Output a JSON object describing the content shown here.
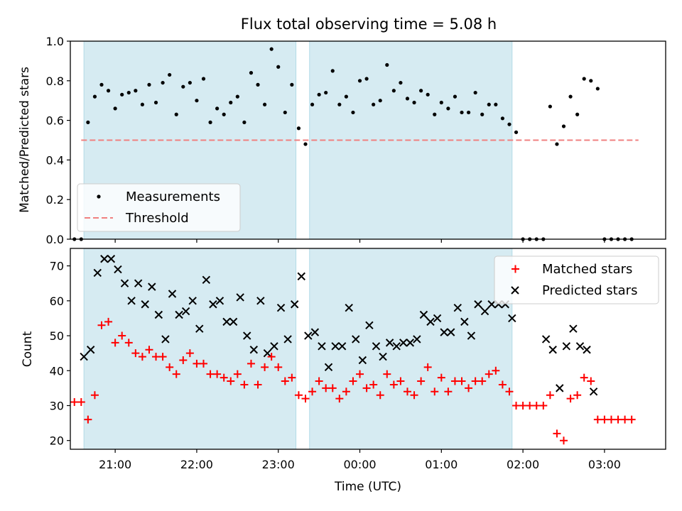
{
  "chart_data": [
    {
      "type": "scatter",
      "title": "Flux total observing time = 5.08 h",
      "ylabel": "Matched/Predicted stars",
      "xlabel": "",
      "xlim": [
        20.45,
        3.75
      ],
      "ylim": [
        0.0,
        1.0
      ],
      "yticks": [
        "0.0",
        "0.2",
        "0.4",
        "0.6",
        "0.8",
        "1.0"
      ],
      "shaded_intervals": [
        [
          "20:37",
          "23:13"
        ],
        [
          "23:23",
          "01:52"
        ]
      ],
      "legend_position": "lower-left",
      "legend": [
        "Measurements",
        "Threshold"
      ],
      "series": [
        {
          "name": "Measurements",
          "x": [
            "20:30",
            "20:35",
            "20:40",
            "20:45",
            "20:50",
            "20:55",
            "21:00",
            "21:05",
            "21:10",
            "21:15",
            "21:20",
            "21:25",
            "21:30",
            "21:35",
            "21:40",
            "21:45",
            "21:50",
            "21:55",
            "22:00",
            "22:05",
            "22:10",
            "22:15",
            "22:20",
            "22:25",
            "22:30",
            "22:35",
            "22:40",
            "22:45",
            "22:50",
            "22:55",
            "23:00",
            "23:05",
            "23:10",
            "23:15",
            "23:20",
            "23:25",
            "23:30",
            "23:35",
            "23:40",
            "23:45",
            "23:50",
            "23:55",
            "00:00",
            "00:05",
            "00:10",
            "00:15",
            "00:20",
            "00:25",
            "00:30",
            "00:35",
            "00:40",
            "00:45",
            "00:50",
            "00:55",
            "01:00",
            "01:05",
            "01:10",
            "01:15",
            "01:20",
            "01:25",
            "01:30",
            "01:35",
            "01:40",
            "01:45",
            "01:50",
            "01:55",
            "02:00",
            "02:05",
            "02:10",
            "02:15",
            "02:20",
            "02:25",
            "02:30",
            "02:35",
            "02:40",
            "02:45",
            "02:50",
            "02:55",
            "03:00",
            "03:05",
            "03:10",
            "03:15",
            "03:20"
          ],
          "y": [
            0.0,
            0.0,
            0.59,
            0.72,
            0.78,
            0.75,
            0.66,
            0.73,
            0.74,
            0.75,
            0.68,
            0.78,
            0.69,
            0.79,
            0.83,
            0.63,
            0.77,
            0.79,
            0.7,
            0.81,
            0.59,
            0.66,
            0.63,
            0.69,
            0.72,
            0.59,
            0.84,
            0.78,
            0.68,
            0.96,
            0.87,
            0.64,
            0.78,
            0.56,
            0.48,
            0.68,
            0.73,
            0.74,
            0.85,
            0.68,
            0.72,
            0.64,
            0.8,
            0.81,
            0.68,
            0.7,
            0.88,
            0.75,
            0.79,
            0.71,
            0.69,
            0.75,
            0.73,
            0.63,
            0.69,
            0.66,
            0.72,
            0.64,
            0.64,
            0.74,
            0.63,
            0.68,
            0.68,
            0.61,
            0.58,
            0.54,
            0.0,
            0.0,
            0.0,
            0.0,
            0.67,
            0.48,
            0.57,
            0.72,
            0.63,
            0.81,
            0.8,
            0.76,
            0.0,
            0.0,
            0.0,
            0.0,
            0.0
          ]
        },
        {
          "name": "Threshold",
          "x": [
            "20:35",
            "03:25"
          ],
          "y": [
            0.5,
            0.5
          ]
        }
      ]
    },
    {
      "type": "scatter",
      "title": "",
      "ylabel": "Count",
      "xlabel": "Time (UTC)",
      "xlim": [
        20.45,
        3.75
      ],
      "ylim": [
        17.5,
        75
      ],
      "yticks": [
        "20",
        "30",
        "40",
        "50",
        "60",
        "70"
      ],
      "xticks": [
        "21:00",
        "22:00",
        "23:00",
        "00:00",
        "01:00",
        "02:00",
        "03:00"
      ],
      "shaded_intervals": [
        [
          "20:37",
          "23:13"
        ],
        [
          "23:23",
          "01:52"
        ]
      ],
      "legend_position": "upper-right",
      "legend": [
        "Matched stars",
        "Predicted stars"
      ],
      "series": [
        {
          "name": "Matched stars",
          "x": [
            "20:30",
            "20:35",
            "20:40",
            "20:45",
            "20:50",
            "20:55",
            "21:00",
            "21:05",
            "21:10",
            "21:15",
            "21:20",
            "21:25",
            "21:30",
            "21:35",
            "21:40",
            "21:45",
            "21:50",
            "21:55",
            "22:00",
            "22:05",
            "22:10",
            "22:15",
            "22:20",
            "22:25",
            "22:30",
            "22:35",
            "22:40",
            "22:45",
            "22:50",
            "22:55",
            "23:00",
            "23:05",
            "23:10",
            "23:15",
            "23:20",
            "23:25",
            "23:30",
            "23:35",
            "23:40",
            "23:45",
            "23:50",
            "23:55",
            "00:00",
            "00:05",
            "00:10",
            "00:15",
            "00:20",
            "00:25",
            "00:30",
            "00:35",
            "00:40",
            "00:45",
            "00:50",
            "00:55",
            "01:00",
            "01:05",
            "01:10",
            "01:15",
            "01:20",
            "01:25",
            "01:30",
            "01:35",
            "01:40",
            "01:45",
            "01:50",
            "01:55",
            "02:00",
            "02:05",
            "02:10",
            "02:15",
            "02:20",
            "02:25",
            "02:30",
            "02:35",
            "02:40",
            "02:45",
            "02:50",
            "02:55",
            "03:00",
            "03:05",
            "03:10",
            "03:15",
            "03:20"
          ],
          "y": [
            31,
            31,
            26,
            33,
            53,
            54,
            48,
            50,
            48,
            45,
            44,
            46,
            44,
            44,
            41,
            39,
            43,
            45,
            42,
            42,
            39,
            39,
            38,
            37,
            39,
            36,
            42,
            36,
            41,
            44,
            41,
            37,
            38,
            33,
            32,
            34,
            37,
            35,
            35,
            32,
            34,
            37,
            39,
            35,
            36,
            33,
            39,
            36,
            37,
            34,
            33,
            37,
            41,
            34,
            38,
            34,
            37,
            37,
            35,
            37,
            37,
            39,
            40,
            36,
            34,
            30,
            30,
            30,
            30,
            30,
            33,
            22,
            20,
            32,
            33,
            38,
            37,
            26,
            26,
            26,
            26,
            26,
            26
          ]
        },
        {
          "name": "Predicted stars",
          "x": [
            "20:37",
            "20:42",
            "20:47",
            "20:52",
            "20:57",
            "21:02",
            "21:07",
            "21:12",
            "21:17",
            "21:22",
            "21:27",
            "21:32",
            "21:37",
            "21:42",
            "21:47",
            "21:52",
            "21:57",
            "22:02",
            "22:07",
            "22:12",
            "22:17",
            "22:22",
            "22:27",
            "22:32",
            "22:37",
            "22:42",
            "22:47",
            "22:52",
            "22:57",
            "23:02",
            "23:07",
            "23:12",
            "23:17",
            "23:22",
            "23:27",
            "23:32",
            "23:37",
            "23:42",
            "23:47",
            "23:52",
            "23:57",
            "00:02",
            "00:07",
            "00:12",
            "00:17",
            "00:22",
            "00:27",
            "00:32",
            "00:37",
            "00:42",
            "00:47",
            "00:52",
            "00:57",
            "01:02",
            "01:07",
            "01:12",
            "01:17",
            "01:22",
            "01:27",
            "01:32",
            "01:37",
            "01:42",
            "01:47",
            "01:52",
            "02:17",
            "02:22",
            "02:27",
            "02:32",
            "02:37",
            "02:42",
            "02:47",
            "02:52"
          ],
          "y": [
            44,
            46,
            68,
            72,
            72,
            69,
            65,
            60,
            65,
            59,
            64,
            56,
            49,
            62,
            56,
            57,
            60,
            52,
            66,
            59,
            60,
            54,
            54,
            61,
            50,
            46,
            60,
            45,
            47,
            58,
            49,
            59,
            67,
            50,
            51,
            47,
            41,
            47,
            47,
            58,
            49,
            43,
            53,
            47,
            44,
            48,
            47,
            48,
            48,
            49,
            56,
            54,
            55,
            51,
            51,
            58,
            54,
            50,
            59,
            57,
            59,
            59,
            59,
            55,
            49,
            46,
            35,
            47,
            52,
            47,
            46,
            34
          ]
        }
      ]
    }
  ]
}
